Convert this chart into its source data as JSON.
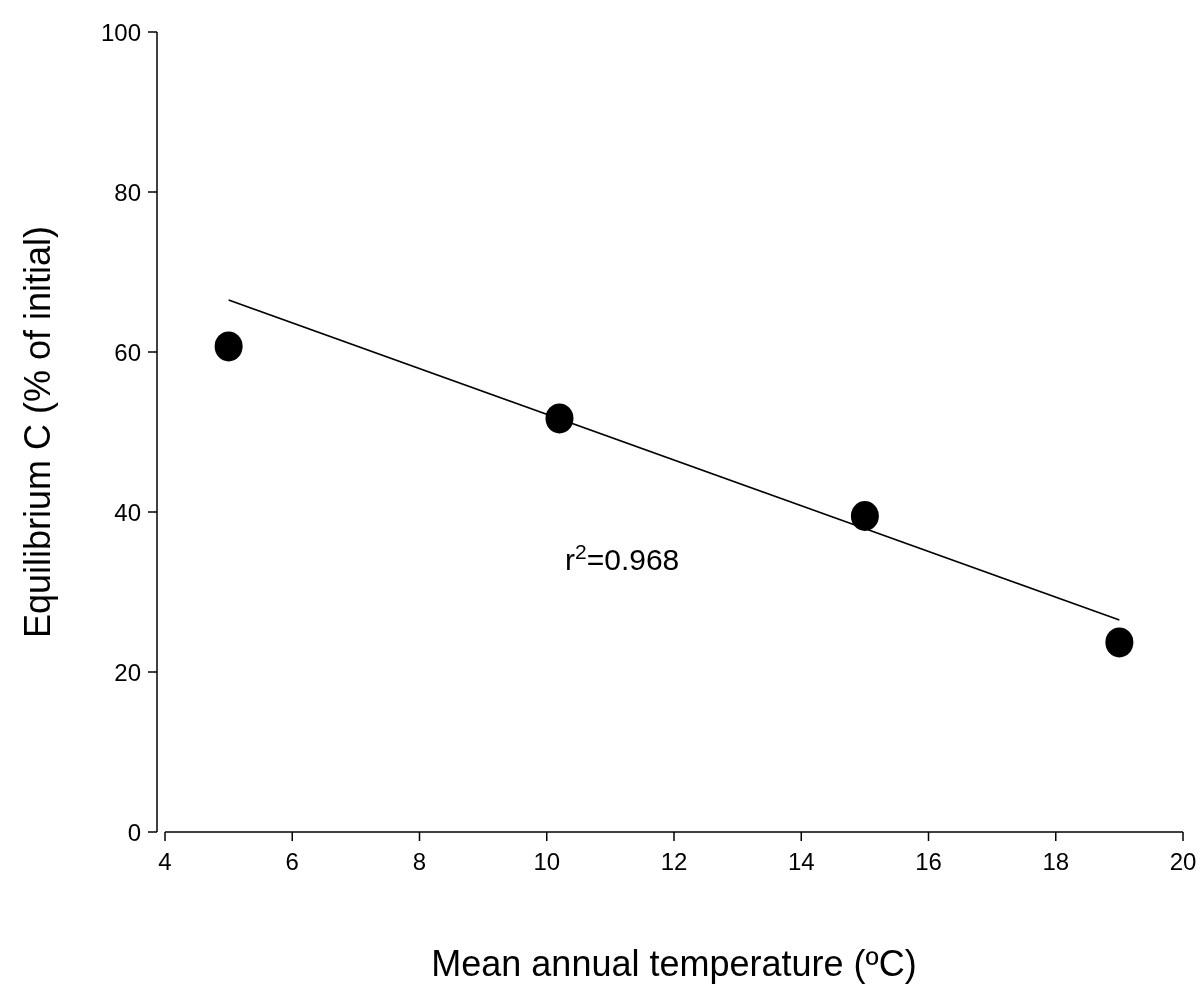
{
  "chart_data": {
    "type": "scatter",
    "xlabel": "Mean annual temperature (ºC)",
    "ylabel": "Equilibrium C  (% of initial)",
    "xlim": [
      4,
      20
    ],
    "xticks": [
      4,
      6,
      8,
      10,
      12,
      14,
      16,
      18,
      20
    ],
    "ylim": [
      0,
      100
    ],
    "yticks": [
      0,
      20,
      40,
      60,
      80,
      100
    ],
    "series": [
      {
        "x": [
          5,
          10.2,
          15,
          19
        ],
        "values": [
          60.7,
          51.7,
          39.5,
          23.7
        ],
        "color": "#000000",
        "marker": "circle"
      },
      {
        "type": "line",
        "x": [
          5,
          19
        ],
        "values": [
          66.5,
          26.5
        ],
        "color": "#000000",
        "marker": "none"
      }
    ],
    "annotations": [
      "r$^{2}$=0.968"
    ]
  }
}
